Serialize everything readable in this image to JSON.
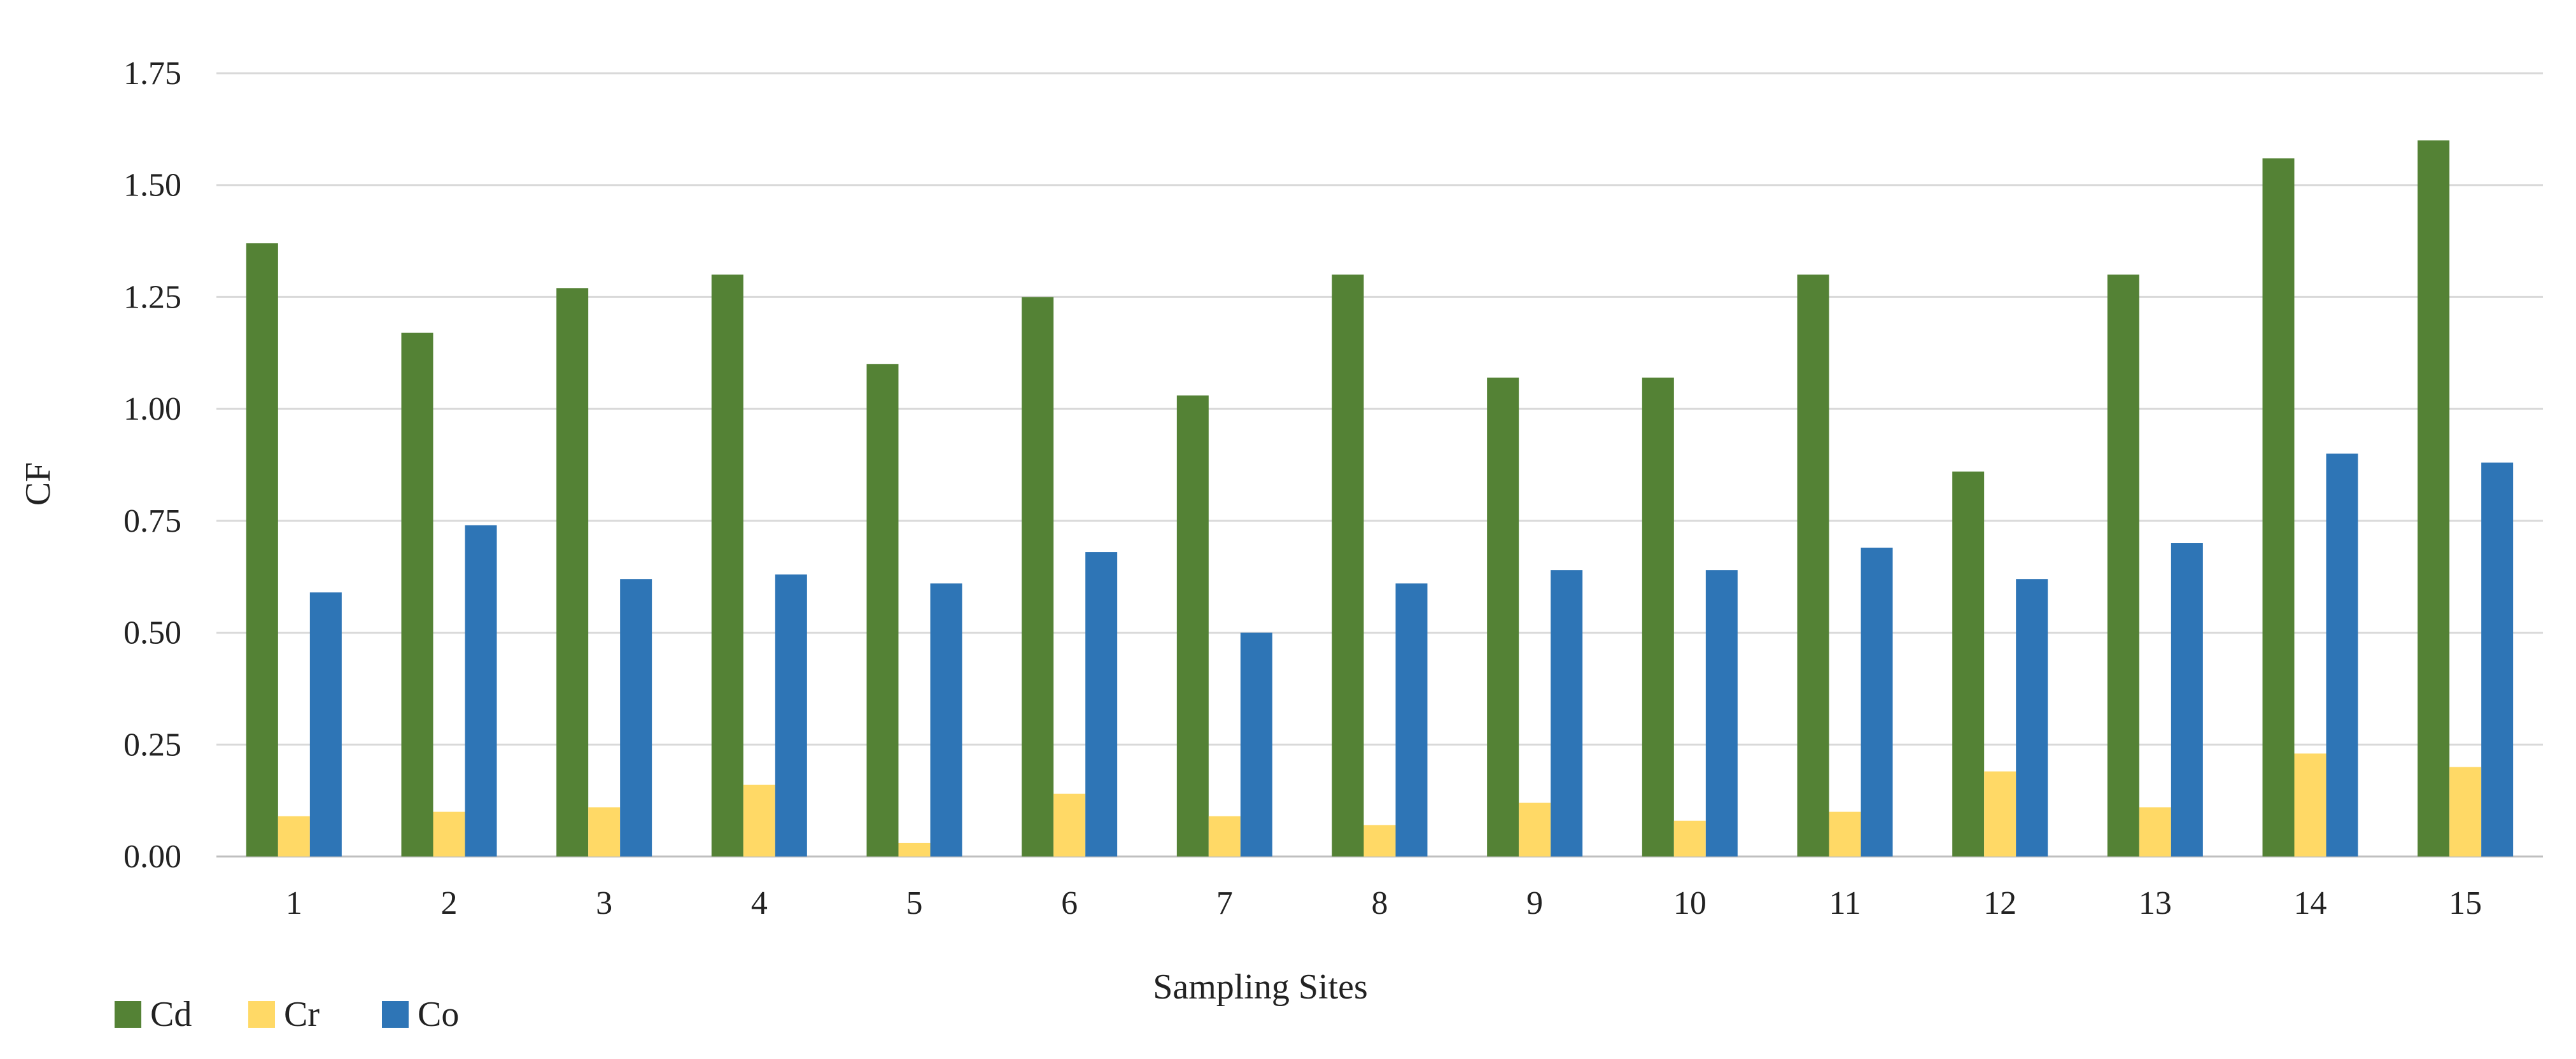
{
  "chart_data": {
    "type": "bar",
    "title": "",
    "xlabel": "Sampling Sites",
    "ylabel": "CF",
    "ylim": [
      0,
      1.75
    ],
    "yticks": [
      "0.00",
      "0.25",
      "0.50",
      "0.75",
      "1.00",
      "1.25",
      "1.50",
      "1.75"
    ],
    "grid": true,
    "legend_position": "bottom-left",
    "categories": [
      "1",
      "2",
      "3",
      "4",
      "5",
      "6",
      "7",
      "8",
      "9",
      "10",
      "11",
      "12",
      "13",
      "14",
      "15"
    ],
    "series": [
      {
        "name": "Cd",
        "color": "#548235",
        "values": [
          1.37,
          1.17,
          1.27,
          1.3,
          1.1,
          1.25,
          1.03,
          1.3,
          1.07,
          1.07,
          1.3,
          0.86,
          1.3,
          1.56,
          1.6
        ]
      },
      {
        "name": "Cr",
        "color": "#FFD966",
        "values": [
          0.09,
          0.1,
          0.11,
          0.16,
          0.03,
          0.14,
          0.09,
          0.07,
          0.12,
          0.08,
          0.1,
          0.19,
          0.11,
          0.23,
          0.2
        ]
      },
      {
        "name": "Co",
        "color": "#2E75B6",
        "values": [
          0.59,
          0.74,
          0.62,
          0.63,
          0.61,
          0.68,
          0.5,
          0.61,
          0.64,
          0.64,
          0.69,
          0.62,
          0.7,
          0.9,
          0.88
        ]
      }
    ]
  }
}
